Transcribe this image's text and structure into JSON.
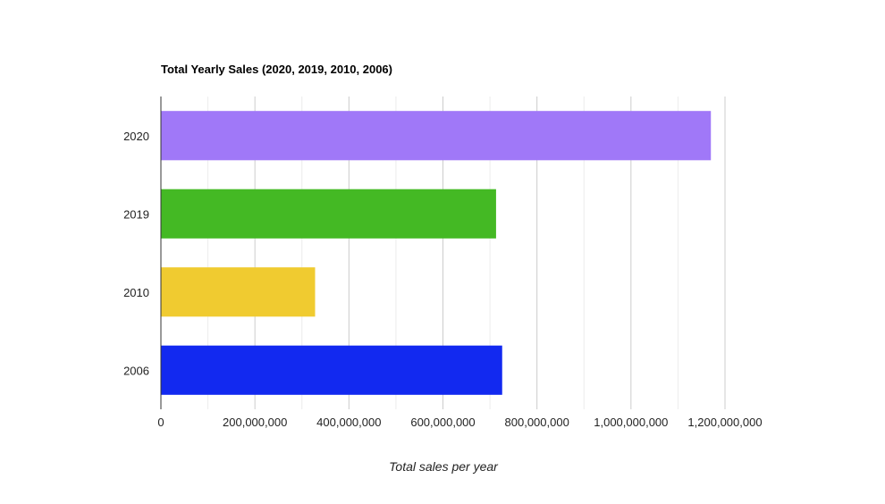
{
  "chart_data": {
    "type": "bar",
    "orientation": "horizontal",
    "title": "Total Yearly Sales (2020, 2019, 2010, 2006)",
    "xlabel": "Total sales per year",
    "ylabel": "",
    "categories": [
      "2020",
      "2019",
      "2010",
      "2006"
    ],
    "values": [
      1170000000,
      713000000,
      328000000,
      726000000
    ],
    "colors": [
      "#a078f8",
      "#44b924",
      "#f0cb30",
      "#1229f0"
    ],
    "xlim": [
      0,
      1200000000
    ],
    "x_ticks": [
      0,
      200000000,
      400000000,
      600000000,
      800000000,
      1000000000,
      1200000000
    ],
    "x_tick_labels": [
      "0",
      "200,000,000",
      "400,000,000",
      "600,000,000",
      "800,000,000",
      "1,000,000,000",
      "1,200,000,000"
    ],
    "grid": true,
    "legend": "none"
  }
}
